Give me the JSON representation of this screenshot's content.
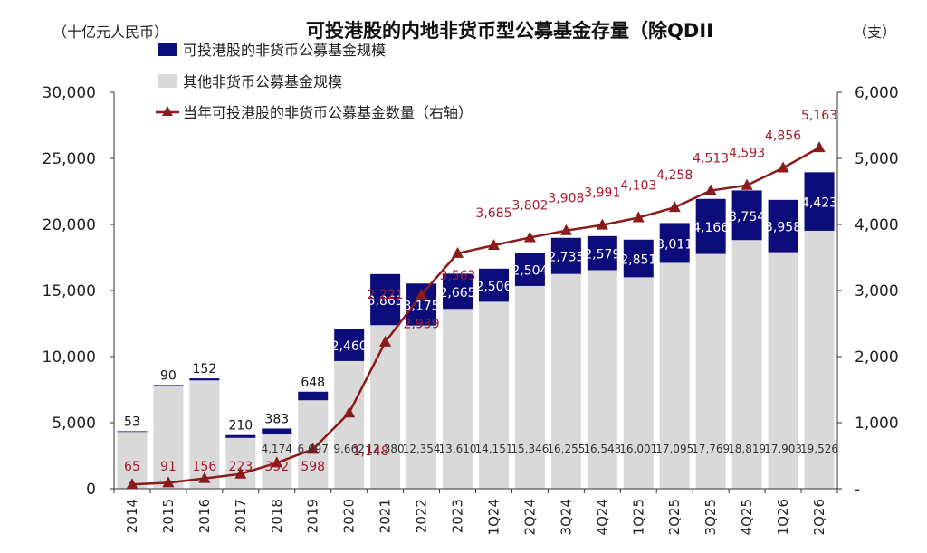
{
  "chart_data": {
    "type": "bar",
    "title": "可投港股的内地非货币型公募基金存量（除QDII",
    "left_axis_unit": "（十亿元人民币）",
    "right_axis_unit": "（支）",
    "categories": [
      "2014",
      "2015",
      "2016",
      "2017",
      "2018",
      "2019",
      "2020",
      "2021",
      "2022",
      "2023",
      "1Q24",
      "2Q24",
      "3Q24",
      "4Q24",
      "1Q25",
      "2Q25",
      "3Q25",
      "4Q25",
      "1Q26",
      "2Q26"
    ],
    "series": [
      {
        "name": "其他非货币公募基金规模",
        "kind": "bar-stack-base",
        "color": "#d9d9d9",
        "axis": "left",
        "values": [
          4300,
          7760,
          8200,
          3850,
          4174,
          6697,
          9662,
          12380,
          12354,
          13610,
          14151,
          15346,
          16255,
          16543,
          16001,
          17095,
          17769,
          18819,
          17903,
          19526
        ],
        "labels": [
          "",
          "",
          "",
          "",
          "4,174",
          "6,697",
          "9,662",
          "12,380",
          "12,354",
          "13,610",
          "14,151",
          "15,346",
          "16,255",
          "16,543",
          "16,001",
          "17,095",
          "17,769",
          "18,819",
          "17,903",
          "19,526"
        ]
      },
      {
        "name": "可投港股的非货币公募基金规模",
        "kind": "bar-stack-top",
        "color": "#0c0c7a",
        "axis": "left",
        "values": [
          53,
          90,
          152,
          210,
          383,
          648,
          2460,
          3863,
          3175,
          2665,
          2506,
          2504,
          2735,
          2579,
          2851,
          3011,
          4166,
          3754,
          3958,
          4423
        ],
        "labels": [
          "53",
          "90",
          "152",
          "210",
          "383",
          "648",
          "2,460",
          "3,863",
          "3,175",
          "2,665",
          "2,506",
          "2,504",
          "2,735",
          "2,579",
          "2,851",
          "3,011",
          "4,166",
          "3,754",
          "3,958",
          "4,423"
        ]
      },
      {
        "name": "当年可投港股的非货币公募基金数量（右轴）",
        "kind": "line",
        "color": "#8b1a1a",
        "label_color": "#a8192e",
        "axis": "right",
        "values": [
          65,
          91,
          156,
          223,
          392,
          598,
          1148,
          2221,
          2939,
          3563,
          3685,
          3802,
          3908,
          3991,
          4103,
          4258,
          4513,
          4593,
          4856,
          5163
        ],
        "labels": [
          "65",
          "91",
          "156",
          "223",
          "392",
          "598",
          "1,148",
          "2,221",
          "2,939",
          "3,563",
          "3,685",
          "3,802",
          "3,908",
          "3,991",
          "4,103",
          "4,258",
          "4,513",
          "4,593",
          "4,856",
          "5,163"
        ]
      }
    ],
    "left_axis": {
      "min": 0,
      "max": 30000,
      "ticks": [
        "0",
        "5,000",
        "10,000",
        "15,000",
        "20,000",
        "25,000",
        "30,000"
      ]
    },
    "right_axis": {
      "min": 0,
      "max": 6000,
      "ticks": [
        "-",
        "1,000",
        "2,000",
        "3,000",
        "4,000",
        "5,000",
        "6,000"
      ]
    },
    "legend_position": "top-left",
    "grid": false
  }
}
